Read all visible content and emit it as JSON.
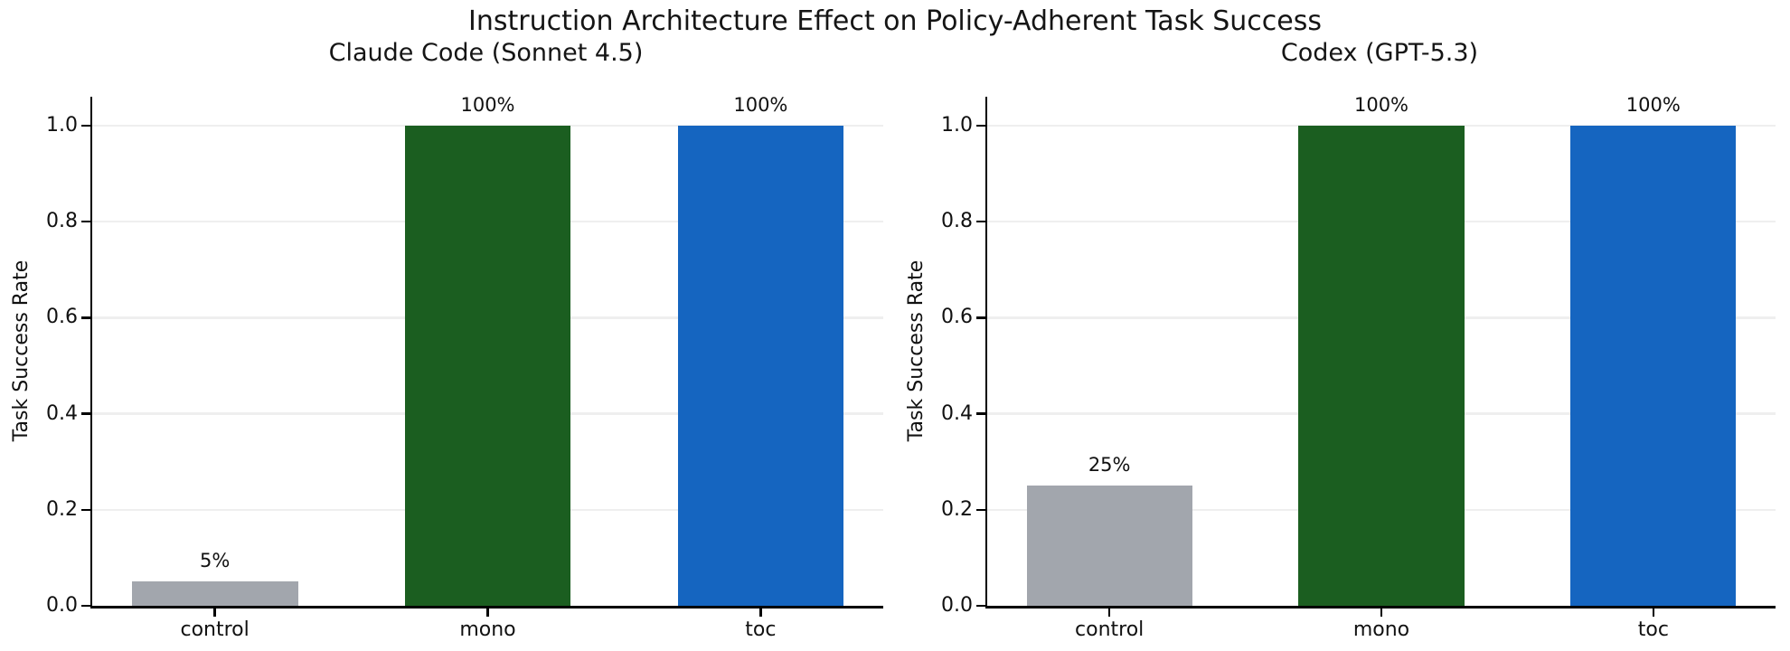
{
  "figure": {
    "title": "Instruction Architecture Effect on Policy-Adherent Task Success",
    "background_color": "#ffffff",
    "text_color": "#111111"
  },
  "chart_data": [
    {
      "type": "bar",
      "title": "Claude Code (Sonnet 4.5)",
      "categories": [
        "control",
        "mono",
        "toc"
      ],
      "values": [
        0.05,
        1.0,
        1.0
      ],
      "bar_labels": [
        "5%",
        "100%",
        "100%"
      ],
      "bar_colors": [
        "#a2a6ad",
        "#1b5e20",
        "#1565c0"
      ],
      "xlabel": "",
      "ylabel": "Task Success Rate",
      "yticks": [
        0,
        0.2,
        0.4,
        0.6,
        0.8,
        1.0
      ],
      "ytick_labels": [
        "0.0",
        "0.2",
        "0.4",
        "0.6",
        "0.8",
        "1.0"
      ],
      "ylim": [
        0,
        1.06
      ],
      "grid": "horizontal",
      "grid_color": "#efefef",
      "legend": "none"
    },
    {
      "type": "bar",
      "title": "Codex (GPT-5.3)",
      "categories": [
        "control",
        "mono",
        "toc"
      ],
      "values": [
        0.25,
        1.0,
        1.0
      ],
      "bar_labels": [
        "25%",
        "100%",
        "100%"
      ],
      "bar_colors": [
        "#a2a6ad",
        "#1b5e20",
        "#1565c0"
      ],
      "xlabel": "",
      "ylabel": "Task Success Rate",
      "yticks": [
        0,
        0.2,
        0.4,
        0.6,
        0.8,
        1.0
      ],
      "ytick_labels": [
        "0.0",
        "0.2",
        "0.4",
        "0.6",
        "0.8",
        "1.0"
      ],
      "ylim": [
        0,
        1.06
      ],
      "grid": "horizontal",
      "grid_color": "#efefef",
      "legend": "none"
    }
  ]
}
